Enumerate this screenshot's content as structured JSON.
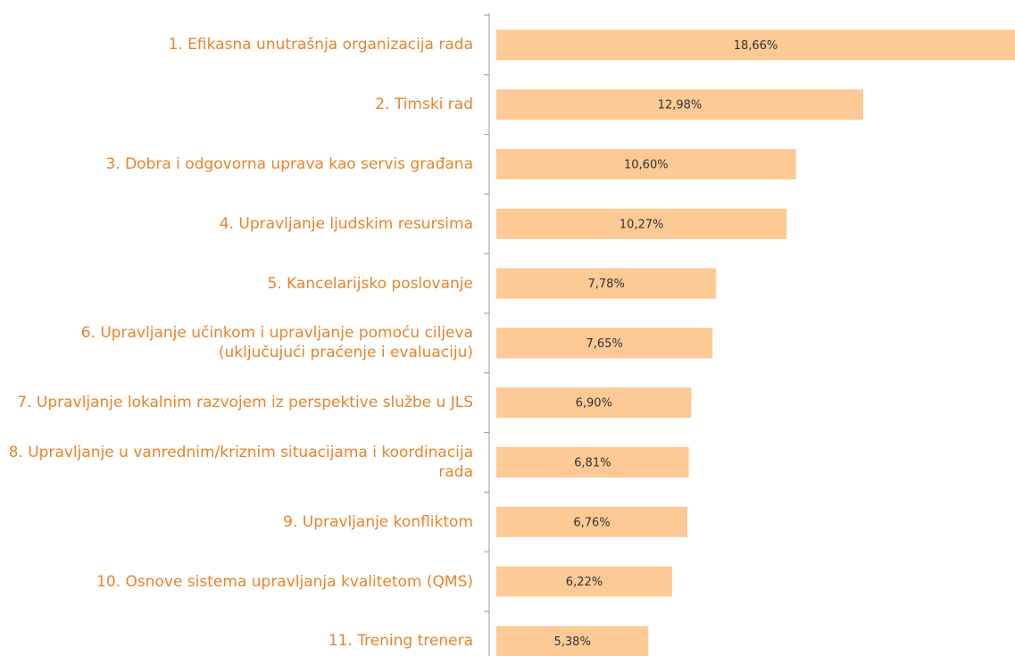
{
  "chart_data": {
    "type": "bar",
    "orientation": "horizontal",
    "color": "#fdc994",
    "label_color": "#e8832a",
    "categories": [
      "1. Efikasna unutrašnja organizacija rada",
      "2. Timski rad",
      "3. Dobra i odgovorna uprava kao servis građana",
      "4. Upravljanje ljudskim resursima ",
      "5. Kancelarijsko poslovanje",
      "6. Upravljanje učinkom i upravljanje pomoću ciljeva (uključujući praćenje i evaluaciju)",
      "7. Upravljanje lokalnim razvojem iz perspektive službe u JLS",
      "8. Upravljanje u vanrednim/kriznim situacijama i koordinacija rada",
      "9. Upravljanje konfliktom",
      "10. Osnove sistema upravljanja kvalitetom (QMS)",
      "11. Trening trenera"
    ],
    "values": [
      18.66,
      12.98,
      10.6,
      10.27,
      7.78,
      7.65,
      6.9,
      6.81,
      6.76,
      6.22,
      5.38
    ],
    "value_labels": [
      "18,66%",
      "12,98%",
      "10,60%",
      "10,27%",
      "7,78%",
      "7,65%",
      "6,90%",
      "6,81%",
      "6,76%",
      "6,22%",
      "5,38%"
    ]
  }
}
